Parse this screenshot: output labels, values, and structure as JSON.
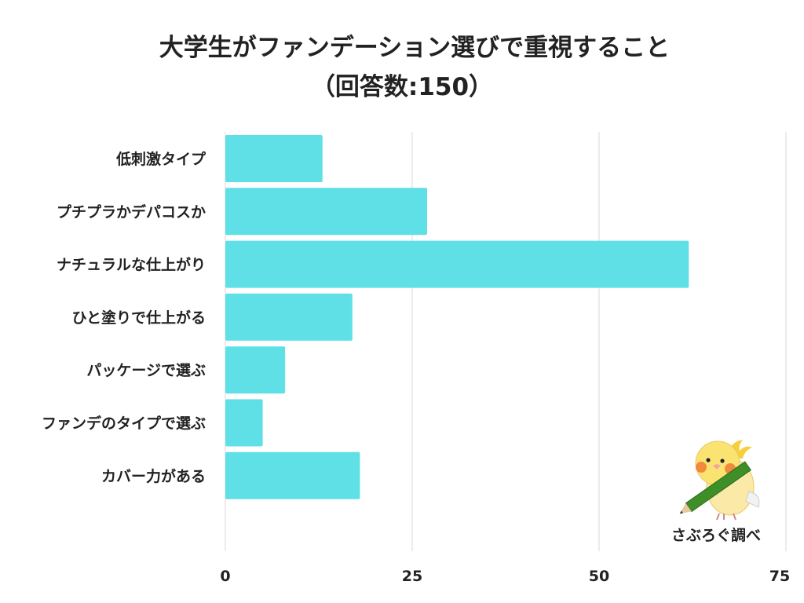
{
  "chart_data": {
    "type": "bar",
    "orientation": "horizontal",
    "title": "大学生がファンデーション選びで重視すること",
    "subtitle": "（回答数:150）",
    "categories": [
      "低刺激タイプ",
      "プチプラかデパコスか",
      "ナチュラルな仕上がり",
      "ひと塗りで仕上がる",
      "パッケージで選ぶ",
      "ファンデのタイプで選ぶ",
      "カバー力がある"
    ],
    "values": [
      13,
      27,
      62,
      17,
      8,
      5,
      18
    ],
    "xlim": [
      0,
      75
    ],
    "xticks": [
      0,
      25,
      50,
      75
    ],
    "grid": true,
    "bar_color": "#5ee0e6",
    "grid_color": "#d9d9d9"
  },
  "credit": {
    "text": "さぶろぐ調べ",
    "mascot_icon": "bird-with-pencil-icon"
  }
}
